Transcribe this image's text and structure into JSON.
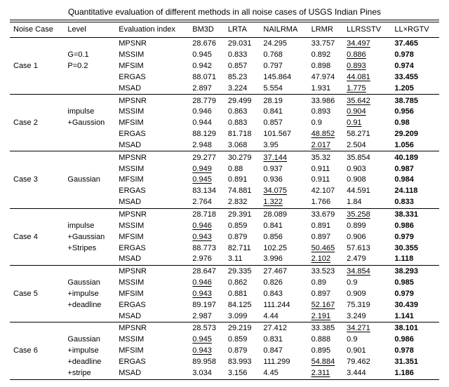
{
  "title": "Quantitative evaluation of different methods in all noise cases of USGS Indian Pines",
  "columns": [
    "Noise Case",
    "Level",
    "Evaluation index",
    "BM3D",
    "LRTA",
    "NAILRMA",
    "LRMR",
    "LLRSSTV",
    "LL×RGTV"
  ],
  "metrics": [
    "MPSNR",
    "MSSIM",
    "MFSIM",
    "ERGAS",
    "MSAD"
  ],
  "groups": [
    {
      "case": "Case 1",
      "level": [
        "",
        "G=0.1",
        "P=0.2",
        "",
        ""
      ],
      "rows": [
        [
          {
            "v": "28.676"
          },
          {
            "v": "29.031"
          },
          {
            "v": "24.295"
          },
          {
            "v": "33.757"
          },
          {
            "v": "34.497",
            "u": true
          },
          {
            "v": "37.465",
            "b": true
          }
        ],
        [
          {
            "v": "0.945"
          },
          {
            "v": "0.833"
          },
          {
            "v": "0.768"
          },
          {
            "v": "0.892"
          },
          {
            "v": "0.886",
            "u": true
          },
          {
            "v": "0.978",
            "b": true
          }
        ],
        [
          {
            "v": "0.942"
          },
          {
            "v": "0.857"
          },
          {
            "v": "0.797"
          },
          {
            "v": "0.898"
          },
          {
            "v": "0.893",
            "u": true
          },
          {
            "v": "0.974",
            "b": true
          }
        ],
        [
          {
            "v": "88.071"
          },
          {
            "v": "85.23"
          },
          {
            "v": "145.864"
          },
          {
            "v": "47.974"
          },
          {
            "v": "44.081",
            "u": true
          },
          {
            "v": "33.455",
            "b": true
          }
        ],
        [
          {
            "v": "2.897"
          },
          {
            "v": "3.224"
          },
          {
            "v": "5.554"
          },
          {
            "v": "1.931"
          },
          {
            "v": "1.775",
            "u": true
          },
          {
            "v": "1.205",
            "b": true
          }
        ]
      ]
    },
    {
      "case": "Case 2",
      "level": [
        "",
        "impulse",
        "+Gaussion",
        "",
        ""
      ],
      "rows": [
        [
          {
            "v": "28.779"
          },
          {
            "v": "29.499"
          },
          {
            "v": "28.19"
          },
          {
            "v": "33.986"
          },
          {
            "v": "35.642",
            "u": true
          },
          {
            "v": "38.785",
            "b": true
          }
        ],
        [
          {
            "v": "0.946"
          },
          {
            "v": "0.863"
          },
          {
            "v": "0.841"
          },
          {
            "v": "0.893"
          },
          {
            "v": "0.904",
            "u": true
          },
          {
            "v": "0.956",
            "b": true
          }
        ],
        [
          {
            "v": "0.944"
          },
          {
            "v": "0.883"
          },
          {
            "v": "0.857"
          },
          {
            "v": "0.9"
          },
          {
            "v": "0.91",
            "u": true
          },
          {
            "v": "0.98",
            "b": true
          }
        ],
        [
          {
            "v": "88.129"
          },
          {
            "v": "81.718"
          },
          {
            "v": "101.567"
          },
          {
            "v": "48.852",
            "u": true
          },
          {
            "v": "58.271"
          },
          {
            "v": "29.209",
            "b": true
          }
        ],
        [
          {
            "v": "2.948"
          },
          {
            "v": "3.068"
          },
          {
            "v": "3.95"
          },
          {
            "v": "2.017",
            "u": true
          },
          {
            "v": "2.504"
          },
          {
            "v": "1.056",
            "b": true
          }
        ]
      ]
    },
    {
      "case": "Case 3",
      "level": [
        "",
        "",
        "Gaussian",
        "",
        ""
      ],
      "rows": [
        [
          {
            "v": "29.277"
          },
          {
            "v": "30.279"
          },
          {
            "v": "37.144",
            "u": true
          },
          {
            "v": "35.32"
          },
          {
            "v": "35.854"
          },
          {
            "v": "40.189",
            "b": true
          }
        ],
        [
          {
            "v": "0.949",
            "u": true
          },
          {
            "v": "0.88"
          },
          {
            "v": "0.937"
          },
          {
            "v": "0.911"
          },
          {
            "v": "0.903"
          },
          {
            "v": "0.987",
            "b": true
          }
        ],
        [
          {
            "v": "0.945",
            "u": true
          },
          {
            "v": "0.891"
          },
          {
            "v": "0.936"
          },
          {
            "v": "0.911"
          },
          {
            "v": "0.908"
          },
          {
            "v": "0.984",
            "b": true
          }
        ],
        [
          {
            "v": "83.134"
          },
          {
            "v": "74.881"
          },
          {
            "v": "34.075",
            "u": true
          },
          {
            "v": "42.107"
          },
          {
            "v": "44.591"
          },
          {
            "v": "24.118",
            "b": true
          }
        ],
        [
          {
            "v": "2.764"
          },
          {
            "v": "2.832"
          },
          {
            "v": "1.322",
            "u": true
          },
          {
            "v": "1.766"
          },
          {
            "v": "1.84"
          },
          {
            "v": "0.833",
            "b": true
          }
        ]
      ]
    },
    {
      "case": "Case 4",
      "level": [
        "",
        "impulse",
        "+Gaussian",
        "+Stripes",
        ""
      ],
      "rows": [
        [
          {
            "v": "28.718"
          },
          {
            "v": "29.391"
          },
          {
            "v": "28.089"
          },
          {
            "v": "33.679"
          },
          {
            "v": "35.258",
            "u": true
          },
          {
            "v": "38.331",
            "b": true
          }
        ],
        [
          {
            "v": "0.946",
            "u": true
          },
          {
            "v": "0.859"
          },
          {
            "v": "0.841"
          },
          {
            "v": "0.891"
          },
          {
            "v": "0.899"
          },
          {
            "v": "0.986",
            "b": true
          }
        ],
        [
          {
            "v": "0.943",
            "u": true
          },
          {
            "v": "0.879"
          },
          {
            "v": "0.856"
          },
          {
            "v": "0.897"
          },
          {
            "v": "0.906"
          },
          {
            "v": "0.979",
            "b": true
          }
        ],
        [
          {
            "v": "88.773"
          },
          {
            "v": "82.711"
          },
          {
            "v": "102.25"
          },
          {
            "v": "50.465",
            "u": true
          },
          {
            "v": "57.613"
          },
          {
            "v": "30.355",
            "b": true
          }
        ],
        [
          {
            "v": "2.976"
          },
          {
            "v": "3.11"
          },
          {
            "v": "3.996"
          },
          {
            "v": "2.102",
            "u": true
          },
          {
            "v": "2.479"
          },
          {
            "v": "1.118",
            "b": true
          }
        ]
      ]
    },
    {
      "case": "Case 5",
      "level": [
        "",
        "Gaussian",
        "+impulse",
        "+deadline",
        ""
      ],
      "rows": [
        [
          {
            "v": "28.647"
          },
          {
            "v": "29.335"
          },
          {
            "v": "27.467"
          },
          {
            "v": "33.523"
          },
          {
            "v": "34.854",
            "u": true
          },
          {
            "v": "38.293",
            "b": true
          }
        ],
        [
          {
            "v": "0.946",
            "u": true
          },
          {
            "v": "0.862"
          },
          {
            "v": "0.826"
          },
          {
            "v": "0.89"
          },
          {
            "v": "0.9"
          },
          {
            "v": "0.985",
            "b": true
          }
        ],
        [
          {
            "v": "0.943",
            "u": true
          },
          {
            "v": "0.881"
          },
          {
            "v": "0.843"
          },
          {
            "v": "0.897"
          },
          {
            "v": "0.909"
          },
          {
            "v": "0.979",
            "b": true
          }
        ],
        [
          {
            "v": "89.197"
          },
          {
            "v": "84.125"
          },
          {
            "v": "111.244"
          },
          {
            "v": "52.167",
            "u": true
          },
          {
            "v": "75.319"
          },
          {
            "v": "30.439",
            "b": true
          }
        ],
        [
          {
            "v": "2.987"
          },
          {
            "v": "3.099"
          },
          {
            "v": "4.44"
          },
          {
            "v": "2.191",
            "u": true
          },
          {
            "v": "3.249"
          },
          {
            "v": "1.141",
            "b": true
          }
        ]
      ]
    },
    {
      "case": "Case 6",
      "level": [
        "",
        "Gaussian",
        "+impulse",
        "+deadline",
        "+stripe"
      ],
      "rows": [
        [
          {
            "v": "28.573"
          },
          {
            "v": "29.219"
          },
          {
            "v": "27.412"
          },
          {
            "v": "33.385"
          },
          {
            "v": "34.271",
            "u": true
          },
          {
            "v": "38.101",
            "b": true
          }
        ],
        [
          {
            "v": "0.945",
            "u": true
          },
          {
            "v": "0.859"
          },
          {
            "v": "0.831"
          },
          {
            "v": "0.888"
          },
          {
            "v": "0.9"
          },
          {
            "v": "0.986",
            "b": true
          }
        ],
        [
          {
            "v": "0.943",
            "u": true
          },
          {
            "v": "0.879"
          },
          {
            "v": "0.847"
          },
          {
            "v": "0.895"
          },
          {
            "v": "0.901"
          },
          {
            "v": "0.978",
            "b": true
          }
        ],
        [
          {
            "v": "89.958"
          },
          {
            "v": "83.993"
          },
          {
            "v": "111.299"
          },
          {
            "v": "54.884",
            "u": true
          },
          {
            "v": "79.462"
          },
          {
            "v": "31.351",
            "b": true
          }
        ],
        [
          {
            "v": "3.034"
          },
          {
            "v": "3.156"
          },
          {
            "v": "4.45"
          },
          {
            "v": "2.311",
            "u": true
          },
          {
            "v": "3.444"
          },
          {
            "v": "1.186",
            "b": true
          }
        ]
      ]
    }
  ]
}
